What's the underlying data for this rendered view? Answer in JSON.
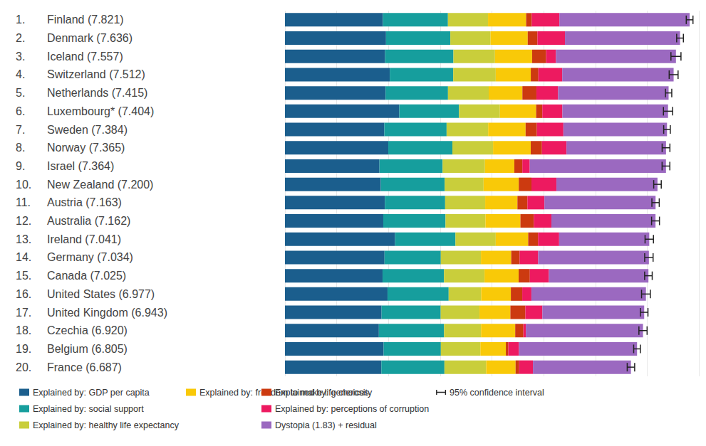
{
  "chart_data": {
    "type": "bar",
    "orientation": "horizontal",
    "stacked": true,
    "grid": true,
    "tick_labels": "y",
    "data_labels": false,
    "rank_labels": [
      "1.",
      "2.",
      "3.",
      "4.",
      "5.",
      "6.",
      "7.",
      "8.",
      "9.",
      "10.",
      "11.",
      "12.",
      "13.",
      "14.",
      "15.",
      "16.",
      "17.",
      "18.",
      "19.",
      "20."
    ],
    "categories": [
      "Finland (7.821)",
      "Denmark (7.636)",
      "Iceland (7.557)",
      "Switzerland (7.512)",
      "Netherlands (7.415)",
      "Luxembourg* (7.404)",
      "Sweden (7.384)",
      "Norway (7.365)",
      "Israel (7.364)",
      "New Zealand (7.200)",
      "Austria (7.163)",
      "Australia (7.162)",
      "Ireland (7.041)",
      "Germany (7.034)",
      "Canada (7.025)",
      "United States (6.977)",
      "United Kingdom (6.943)",
      "Czechia (6.920)",
      "Belgium (6.805)",
      "France (6.687)"
    ],
    "xlim": [
      0,
      8
    ],
    "xticks": [
      0,
      1,
      2,
      3,
      4,
      5,
      6,
      7,
      8
    ],
    "series": [
      {
        "name": "Explained by: GDP per capita",
        "color": "#1b5e8d",
        "values": [
          1.892,
          1.953,
          1.936,
          2.026,
          1.945,
          2.209,
          1.92,
          1.997,
          1.826,
          1.852,
          1.931,
          1.9,
          2.129,
          1.924,
          1.886,
          1.982,
          1.867,
          1.815,
          1.907,
          1.863
        ]
      },
      {
        "name": "Explained by: social support",
        "color": "#169e9d",
        "values": [
          1.258,
          1.243,
          1.32,
          1.226,
          1.206,
          1.155,
          1.204,
          1.239,
          1.221,
          1.235,
          1.165,
          1.203,
          1.166,
          1.088,
          1.188,
          1.182,
          1.143,
          1.26,
          1.106,
          1.219
        ]
      },
      {
        "name": "Explained by: healthy life expectancy",
        "color": "#c9ce3b",
        "values": [
          0.775,
          0.777,
          0.803,
          0.822,
          0.787,
          0.79,
          0.803,
          0.786,
          0.818,
          0.752,
          0.774,
          0.772,
          0.779,
          0.776,
          0.783,
          0.628,
          0.75,
          0.715,
          0.764,
          0.808
        ]
      },
      {
        "name": "Explained by: freedom to make life choices",
        "color": "#f9c908",
        "values": [
          0.736,
          0.719,
          0.718,
          0.677,
          0.651,
          0.7,
          0.724,
          0.728,
          0.568,
          0.68,
          0.623,
          0.676,
          0.627,
          0.585,
          0.659,
          0.574,
          0.597,
          0.66,
          0.492,
          0.567
        ]
      },
      {
        "name": "Explained by: generosity",
        "color": "#cc3a10",
        "values": [
          0.109,
          0.188,
          0.27,
          0.147,
          0.271,
          0.12,
          0.218,
          0.217,
          0.155,
          0.245,
          0.193,
          0.258,
          0.19,
          0.163,
          0.217,
          0.22,
          0.289,
          0.158,
          0.049,
          0.07
        ]
      },
      {
        "name": "Explained by: perceptions of corruption",
        "color": "#ed1a60",
        "values": [
          0.534,
          0.532,
          0.191,
          0.461,
          0.419,
          0.388,
          0.512,
          0.474,
          0.143,
          0.483,
          0.329,
          0.341,
          0.408,
          0.358,
          0.368,
          0.177,
          0.329,
          0.048,
          0.204,
          0.266
        ]
      },
      {
        "name": "Dystopia (1.83) + residual",
        "color": "#9b69c0",
        "values": [
          2.517,
          2.224,
          2.319,
          2.153,
          2.136,
          2.042,
          2.003,
          1.924,
          2.633,
          1.953,
          2.148,
          2.012,
          1.742,
          2.14,
          1.924,
          2.214,
          1.968,
          2.264,
          2.283,
          1.894
        ]
      }
    ],
    "error_bars": {
      "name": "95% confidence interval",
      "color": "#222222",
      "low": [
        7.756,
        7.571,
        7.46,
        7.426,
        7.354,
        7.315,
        7.32,
        7.29,
        7.289,
        7.127,
        7.092,
        7.086,
        6.96,
        6.953,
        6.952,
        6.892,
        6.87,
        6.841,
        6.74,
        6.615
      ],
      "high": [
        7.886,
        7.701,
        7.654,
        7.598,
        7.476,
        7.493,
        7.448,
        7.44,
        7.439,
        7.273,
        7.234,
        7.238,
        7.122,
        7.115,
        7.098,
        7.062,
        7.016,
        6.999,
        6.87,
        6.759
      ]
    }
  }
}
